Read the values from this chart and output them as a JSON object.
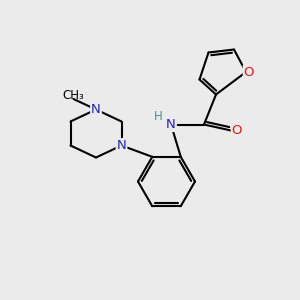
{
  "bg_color": "#ebebeb",
  "atom_colors": {
    "C": "#000000",
    "N": "#2222cc",
    "O": "#ee1111",
    "H": "#4a8f8f"
  },
  "bond_color": "#000000",
  "bond_lw": 1.5,
  "font_size_atom": 9.5,
  "font_size_h": 8.5,
  "font_size_methyl": 8.5,
  "figsize": [
    3.0,
    3.0
  ],
  "dpi": 100
}
